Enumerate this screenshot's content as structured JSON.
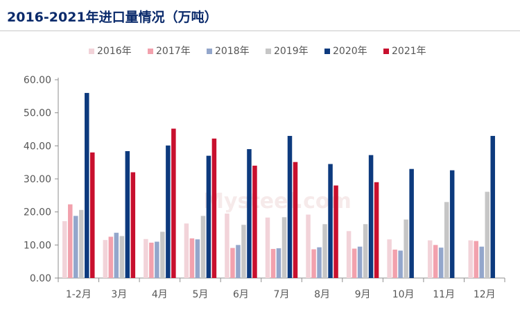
{
  "chart_data": {
    "type": "bar",
    "title": "2016-2021年进口量情况（万吨）",
    "xlabel": "",
    "ylabel": "",
    "ylim": [
      0,
      60
    ],
    "yticks": [
      "0.00",
      "10.00",
      "20.00",
      "30.00",
      "40.00",
      "50.00",
      "60.00"
    ],
    "grid": false,
    "legend_position": "top-center",
    "categories": [
      "1-2月",
      "3月",
      "4月",
      "5月",
      "6月",
      "7月",
      "8月",
      "9月",
      "10月",
      "11月",
      "12月"
    ],
    "series": [
      {
        "name": "2016年",
        "color": "#f2d3d9",
        "values": [
          17.2,
          11.5,
          11.8,
          16.5,
          19.5,
          18.3,
          19.2,
          14.2,
          11.7,
          11.4,
          11.4
        ]
      },
      {
        "name": "2017年",
        "color": "#f2a1ad",
        "values": [
          22.3,
          12.5,
          10.7,
          12.0,
          9.1,
          8.8,
          8.7,
          8.9,
          8.6,
          10.0,
          11.2
        ]
      },
      {
        "name": "2018年",
        "color": "#93a6cb",
        "values": [
          18.8,
          13.7,
          11.0,
          11.7,
          10.0,
          9.0,
          9.3,
          9.5,
          8.3,
          9.2,
          9.5
        ]
      },
      {
        "name": "2019年",
        "color": "#c6c6c6",
        "values": [
          20.6,
          12.7,
          14.0,
          18.8,
          16.1,
          18.4,
          16.3,
          16.3,
          17.7,
          23.0,
          26.1
        ]
      },
      {
        "name": "2020年",
        "color": "#0d3a7e",
        "values": [
          56.0,
          38.4,
          40.1,
          37.0,
          39.0,
          43.0,
          34.5,
          37.2,
          33.0,
          32.6,
          43.0
        ]
      },
      {
        "name": "2021年",
        "color": "#c8102e",
        "values": [
          38.0,
          32.0,
          45.2,
          42.2,
          34.0,
          35.1,
          28.0,
          29.0,
          null,
          null,
          null
        ]
      }
    ],
    "watermark": "Mysteel.com"
  }
}
